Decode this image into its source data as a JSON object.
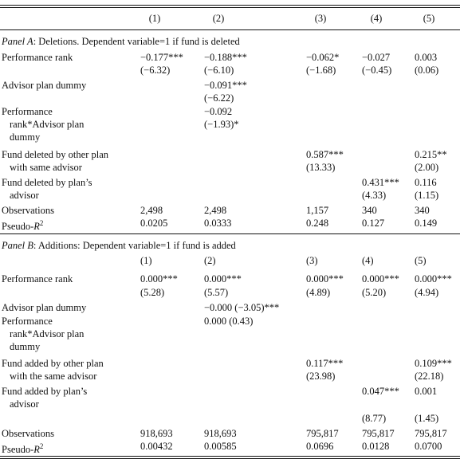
{
  "columns": [
    "(1)",
    "(2)",
    "(3)",
    "(4)",
    "(5)"
  ],
  "panel_a": {
    "title_italic": "Panel A",
    "title_rest": ": Deletions. Dependent variable=1 if fund is deleted",
    "rows": {
      "perf_label": "Performance rank",
      "perf": [
        "−0.177***",
        "−0.188***",
        "−0.062*",
        "−0.027",
        "0.003"
      ],
      "perf_t": [
        "(−6.32)",
        "(−6.10)",
        "(−1.68)",
        "(−0.45)",
        "(0.06)"
      ],
      "adv_label": "Advisor plan dummy",
      "adv": "−0.091***",
      "adv_t": "(−6.22)",
      "inter_l1": "Performance",
      "inter_l2": "rank*Advisor plan",
      "inter_l3": "dummy",
      "inter": "−0.092",
      "inter_t": "(−1.93)*",
      "other_l1": "Fund deleted by other plan",
      "other_l2": "with same advisor",
      "other3": "0.587***",
      "other3_t": "(13.33)",
      "other5": "0.215**",
      "other5_t": "(2.00)",
      "own_l1": "Fund deleted by plan’s",
      "own_l2": "advisor",
      "own4": "0.431***",
      "own4_t": "(4.33)",
      "own5": "0.116",
      "own5_t": "(1.15)",
      "obs_label": "Observations",
      "obs": [
        "2,498",
        "2,498",
        "1,157",
        "340",
        "340"
      ],
      "r2_label": "Pseudo-",
      "r2": [
        "0.0205",
        "0.0333",
        "0.248",
        "0.127",
        "0.149"
      ]
    }
  },
  "panel_b": {
    "title_italic": "Panel B",
    "title_rest": ": Additions: Dependent variable=1 if fund is added",
    "rows": {
      "perf_label": "Performance rank",
      "perf": [
        "0.000***",
        "0.000***",
        "0.000***",
        "0.000***",
        "0.000***"
      ],
      "perf_t": [
        "(5.28)",
        "(5.57)",
        "(4.89)",
        "(5.20)",
        "(4.94)"
      ],
      "adv_label": "Advisor plan dummy",
      "adv": "−0.000 (−3.05)***",
      "inter_l1": "Performance",
      "inter_l2": "rank*Advisor plan",
      "inter_l3": "dummy",
      "inter": "0.000 (0.43)",
      "other_l1": "Fund added by other plan",
      "other_l2": "with the same advisor",
      "other3": "0.117***",
      "other3_t": "(23.98)",
      "other5": "0.109***",
      "other5_t": "(22.18)",
      "own_l1": "Fund added by plan’s",
      "own_l2": "advisor",
      "own4": "0.047***",
      "own4_t": "(8.77)",
      "own5": "0.001",
      "own5_t": "(1.45)",
      "obs_label": "Observations",
      "obs": [
        "918,693",
        "918,693",
        "795,817",
        "795,817",
        "795,817"
      ],
      "r2_label": "Pseudo-",
      "r2": [
        "0.00432",
        "0.00585",
        "0.0696",
        "0.0128",
        "0.0700"
      ]
    }
  }
}
